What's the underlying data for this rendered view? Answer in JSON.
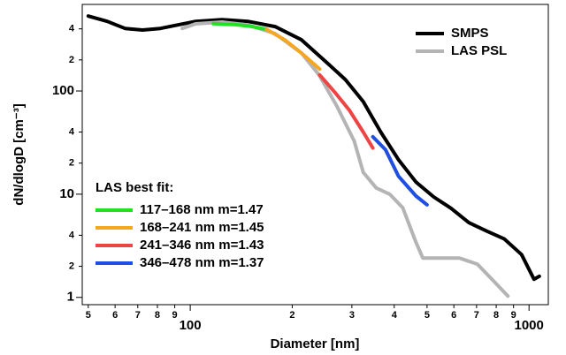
{
  "chart_data": {
    "type": "line",
    "xlabel": "Diameter [nm]",
    "ylabel": "dN/dlogD [cm⁻³]",
    "xscale": "log",
    "yscale": "log",
    "xlim": [
      48,
      1140
    ],
    "ylim": [
      0.85,
      690
    ],
    "xticks": [
      {
        "value": 50,
        "label": "5"
      },
      {
        "value": 60,
        "label": "6"
      },
      {
        "value": 70,
        "label": "7"
      },
      {
        "value": 80,
        "label": "8"
      },
      {
        "value": 90,
        "label": "9"
      },
      100,
      {
        "value": 200,
        "label": "2"
      },
      {
        "value": 300,
        "label": "3"
      },
      {
        "value": 400,
        "label": "4"
      },
      {
        "value": 500,
        "label": "5"
      },
      {
        "value": 600,
        "label": "6"
      },
      {
        "value": 700,
        "label": "7"
      },
      {
        "value": 800,
        "label": "8"
      },
      {
        "value": 900,
        "label": "9"
      },
      1000
    ],
    "yticks": [
      1,
      2,
      4,
      10,
      {
        "value": 20,
        "label": "2"
      },
      {
        "value": 40,
        "label": "4"
      },
      100,
      {
        "value": 200,
        "label": "2"
      },
      {
        "value": 400,
        "label": "4"
      }
    ],
    "legend_title": "LAS best fit:",
    "series": [
      {
        "name": "SMPS",
        "color": "#000000",
        "x": [
          50,
          56.9,
          64.2,
          72.3,
          81.6,
          92,
          103.7,
          124,
          148,
          178,
          213,
          255,
          287,
          324,
          365,
          412,
          464,
          523,
          589,
          664,
          749,
          844,
          951,
          1034,
          1072
        ],
        "values": [
          532,
          473,
          404,
          390,
          404,
          437,
          473,
          492,
          473,
          421,
          313,
          184,
          129,
          79,
          40,
          21.5,
          13.1,
          9.4,
          7.3,
          5.3,
          4.4,
          3.7,
          2.6,
          1.5,
          1.6
        ]
      },
      {
        "name": "LAS PSL",
        "color": "#b4b4b4",
        "x": [
          94.7,
          103.7,
          124,
          148,
          178,
          213,
          240,
          271,
          305,
          324,
          354,
          388,
          424,
          464,
          486,
          551,
          624,
          704,
          793,
          866
        ],
        "values": [
          404,
          447,
          465,
          437,
          360,
          233,
          143,
          71,
          32.6,
          16.3,
          11.5,
          10.0,
          7.4,
          3.4,
          2.4,
          2.4,
          2.4,
          2.1,
          1.4,
          1.03
        ]
      },
      {
        "name": "117–168 nm m=1.47",
        "color": "#22e022",
        "x": [
          117,
          123,
          135,
          150,
          168
        ],
        "values": [
          450,
          445,
          440,
          425,
          396
        ]
      },
      {
        "name": "168–241 nm m=1.45",
        "color": "#f5a623",
        "x": [
          168,
          190,
          213,
          241
        ],
        "values": [
          396,
          313,
          233,
          163
        ]
      },
      {
        "name": "241–346 nm m=1.43",
        "color": "#ee4444",
        "x": [
          241,
          268,
          295,
          324,
          346
        ],
        "values": [
          143,
          96,
          65,
          40,
          28
        ]
      },
      {
        "name": "346–478 nm m=1.37",
        "color": "#1f4fe0",
        "x": [
          346,
          377,
          412,
          464,
          500
        ],
        "values": [
          36,
          27,
          14.9,
          9.6,
          7.9
        ]
      }
    ]
  }
}
